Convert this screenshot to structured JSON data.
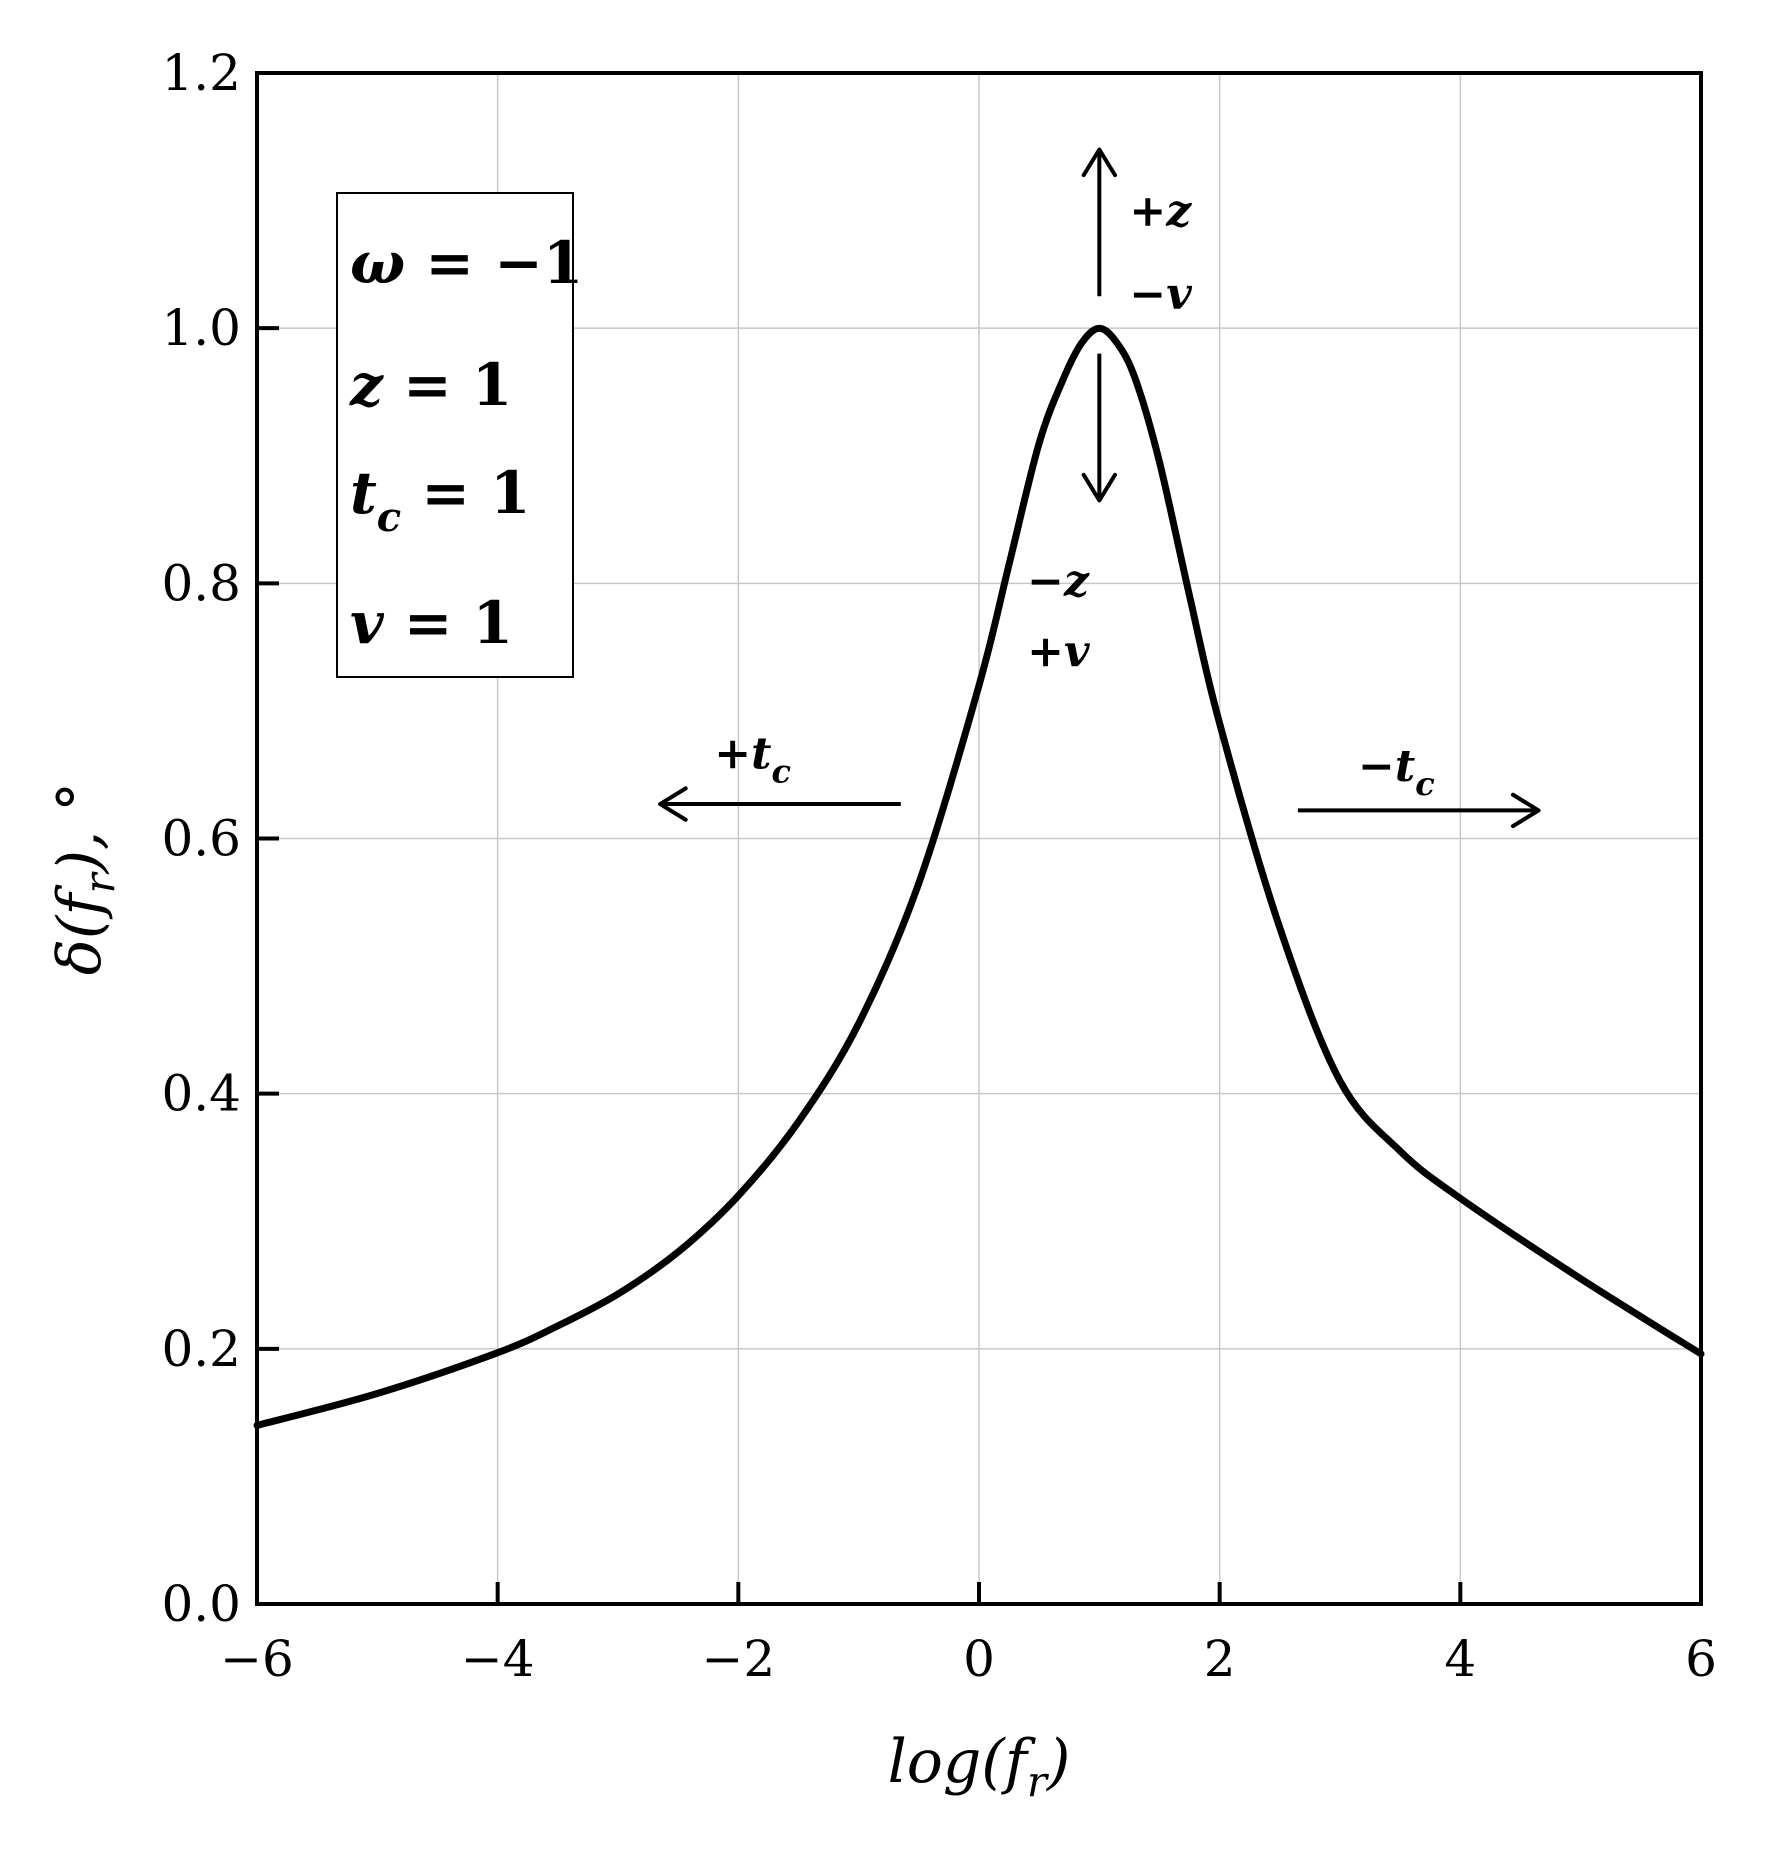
{
  "chart_data": {
    "type": "line",
    "title": "",
    "xlabel": "log(f_r)",
    "xlabel_parts": {
      "main": "log(f",
      "sub": "r",
      "close": ")"
    },
    "ylabel_parts": {
      "main": "δ(f",
      "sub": "r",
      "close": "), °"
    },
    "xlim": [
      -6,
      6
    ],
    "ylim": [
      0.0,
      1.2
    ],
    "xticks": [
      -6,
      -4,
      -2,
      0,
      2,
      4,
      6
    ],
    "xtick_labels": [
      "−6",
      "−4",
      "−2",
      "0",
      "2",
      "4",
      "6"
    ],
    "yticks": [
      0.0,
      0.2,
      0.4,
      0.6,
      0.8,
      1.0,
      1.2
    ],
    "ytick_labels": [
      "0.0",
      "0.2",
      "0.4",
      "0.6",
      "0.8",
      "1.0",
      "1.2"
    ],
    "grid": true,
    "series": [
      {
        "color": "#000000",
        "x": [
          -6,
          -5,
          -4,
          -3.5,
          -3,
          -2.5,
          -2,
          -1.5,
          -1,
          -0.5,
          0,
          0.25,
          0.5,
          0.7,
          0.85,
          1.0,
          1.15,
          1.3,
          1.5,
          1.75,
          2,
          2.5,
          3,
          3.5,
          4,
          5,
          6
        ],
        "y": [
          0.14,
          0.165,
          0.197,
          0.218,
          0.243,
          0.276,
          0.32,
          0.378,
          0.455,
          0.565,
          0.72,
          0.815,
          0.91,
          0.96,
          0.988,
          1.0,
          0.988,
          0.96,
          0.895,
          0.79,
          0.69,
          0.53,
          0.41,
          0.355,
          0.318,
          0.255,
          0.196
        ]
      }
    ],
    "legend_box": {
      "placement": "top-left",
      "items": [
        {
          "sym": "ω",
          "sub": "",
          "rest": " = −1"
        },
        {
          "sym": "z",
          "sub": "",
          "rest": " = 1"
        },
        {
          "sym": "t",
          "sub": "c",
          "rest": " = 1"
        },
        {
          "sym": "v",
          "sub": "",
          "rest": " = 1"
        }
      ]
    },
    "annotations": [
      {
        "id": "plus-z",
        "sign": "+",
        "sym": "z",
        "sub": "",
        "x": 1.25,
        "y": 1.08
      },
      {
        "id": "minus-v",
        "sign": "−",
        "sym": "v",
        "sub": "",
        "x": 1.25,
        "y": 1.015
      },
      {
        "id": "minus-z",
        "sign": "−",
        "sym": "z",
        "sub": "",
        "x": 0.4,
        "y": 0.79
      },
      {
        "id": "plus-v",
        "sign": "+",
        "sym": "v",
        "sub": "",
        "x": 0.4,
        "y": 0.735
      },
      {
        "id": "plus-tc",
        "sign": "+",
        "sym": "t",
        "sub": "c",
        "x": -2.2,
        "y": 0.655
      },
      {
        "id": "minus-tc",
        "sign": "−",
        "sym": "t",
        "sub": "c",
        "x": 3.15,
        "y": 0.645
      }
    ],
    "arrows": [
      {
        "id": "arrow-up",
        "from": [
          1.0,
          1.025
        ],
        "to": [
          1.0,
          1.14
        ]
      },
      {
        "id": "arrow-down",
        "from": [
          1.0,
          0.98
        ],
        "to": [
          1.0,
          0.865
        ]
      },
      {
        "id": "arrow-left",
        "from": [
          -0.65,
          0.627
        ],
        "to": [
          -2.65,
          0.627
        ]
      },
      {
        "id": "arrow-right",
        "from": [
          2.65,
          0.622
        ],
        "to": [
          4.65,
          0.622
        ]
      }
    ]
  }
}
